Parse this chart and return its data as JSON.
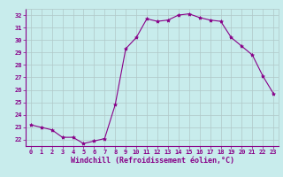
{
  "x": [
    0,
    1,
    2,
    3,
    4,
    5,
    6,
    7,
    8,
    9,
    10,
    11,
    12,
    13,
    14,
    15,
    16,
    17,
    18,
    19,
    20,
    21,
    22,
    23
  ],
  "y": [
    23.2,
    23.0,
    22.8,
    22.2,
    22.2,
    21.7,
    21.9,
    22.1,
    24.8,
    29.3,
    30.2,
    31.7,
    31.5,
    31.6,
    32.0,
    32.1,
    31.8,
    31.6,
    31.5,
    30.2,
    29.5,
    28.8,
    27.1,
    25.7
  ],
  "line_color": "#880088",
  "marker": "*",
  "marker_size": 3,
  "bg_color": "#c8ecec",
  "grid_color": "#b0c8c8",
  "xlabel": "Windchill (Refroidissement éolien,°C)",
  "xlabel_color": "#880088",
  "tick_color": "#880088",
  "spine_color": "#880088",
  "ylim": [
    21.5,
    32.5
  ],
  "yticks": [
    22,
    23,
    24,
    25,
    26,
    27,
    28,
    29,
    30,
    31,
    32
  ],
  "xticks": [
    0,
    1,
    2,
    3,
    4,
    5,
    6,
    7,
    8,
    9,
    10,
    11,
    12,
    13,
    14,
    15,
    16,
    17,
    18,
    19,
    20,
    21,
    22,
    23
  ]
}
